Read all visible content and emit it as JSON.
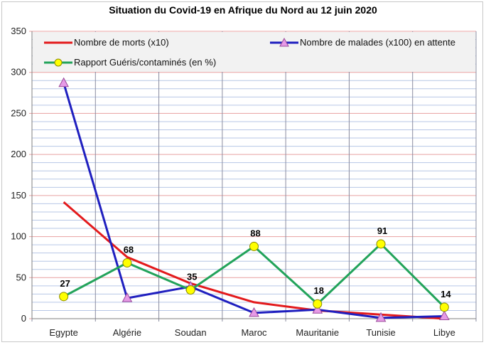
{
  "chart_data": {
    "type": "line",
    "title": "Situation du Covid-19 en Afrique du Nord au 12 juin 2020",
    "categories": [
      "Egypte",
      "Algérie",
      "Soudan",
      "Maroc",
      "Mauritanie",
      "Tunisie",
      "Libye"
    ],
    "ylim": [
      0,
      350
    ],
    "yticks": [
      0,
      50,
      100,
      150,
      200,
      250,
      300,
      350
    ],
    "grid": true,
    "legend_position": "top",
    "series": [
      {
        "name": "Nombre de morts (x10)",
        "color": "#e31a1c",
        "marker": "none",
        "values": [
          142,
          75,
          43,
          20,
          10,
          5,
          0
        ]
      },
      {
        "name": "Nombre de malades (x100) en attente",
        "color": "#1f1fbf",
        "marker": "triangle",
        "marker_color": "#e69ae6",
        "values": [
          287,
          25,
          39,
          7,
          11,
          1,
          3
        ]
      },
      {
        "name": "Rapport Guéris/contaminés (en %)",
        "color": "#22a35a",
        "marker": "circle",
        "marker_color": "#ffff00",
        "values": [
          27,
          68,
          35,
          88,
          18,
          91,
          14
        ],
        "data_labels": [
          "27",
          "68",
          "35",
          "88",
          "18",
          "91",
          "14"
        ]
      }
    ]
  }
}
